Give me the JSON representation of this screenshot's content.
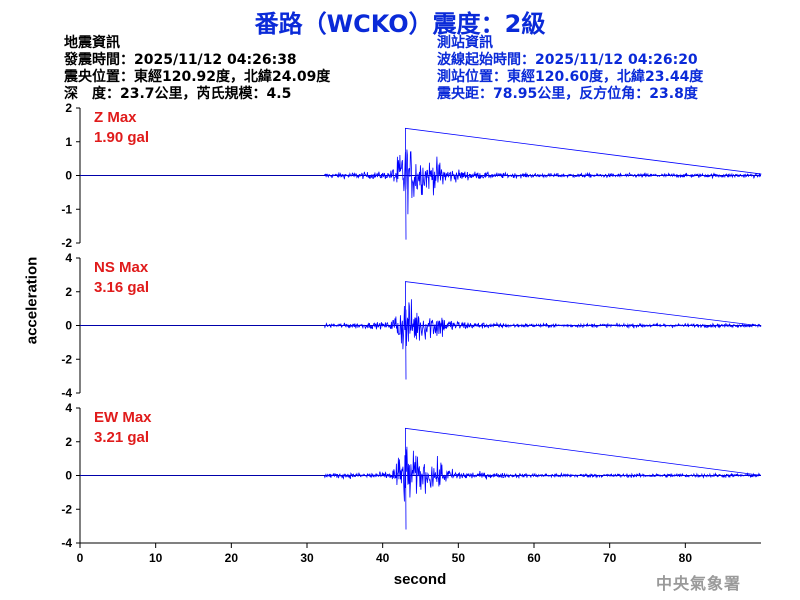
{
  "title": "番路（WCKO）震度：2級",
  "quake_info": {
    "heading": "地震資訊",
    "origin_time": "發震時間：2025/11/12 04:26:38",
    "epicenter": "震央位置：東經120.92度，北緯24.09度",
    "depth_magnitude": "深　度：23.7公里，芮氏規模：4.5"
  },
  "station_info": {
    "heading": "測站資訊",
    "wave_start": "波線起始時間：2025/11/12 04:26:20",
    "station_location": "測站位置：東經120.60度，北緯23.44度",
    "distance_azimuth": "震央距：78.95公里，反方位角：23.8度"
  },
  "watermark": "中央氣象署",
  "colors": {
    "title": "#0a2ad8",
    "trace": "#0000ff",
    "max_label": "#e01b1b",
    "zero_line": "#0000aa"
  },
  "chart_data": {
    "type": "line",
    "xlabel": "second",
    "ylabel": "acceleration",
    "xlim": [
      0,
      90
    ],
    "x_ticks": [
      0,
      10,
      20,
      30,
      40,
      50,
      60,
      70,
      80
    ],
    "x_tick_labels": [
      "0",
      "10",
      "20",
      "30",
      "40",
      "50",
      "60",
      "70",
      "80"
    ],
    "grid": false,
    "panels": [
      {
        "name": "Z",
        "max_title": "Z Max",
        "max_value": "1.90 gal",
        "ylim": [
          -2,
          2
        ],
        "y_ticks": [
          -2,
          -1,
          0,
          1,
          2
        ],
        "y_tick_labels": [
          "-2",
          "-1",
          "0",
          "1",
          "2"
        ],
        "peak_pos": 1.4,
        "peak_neg": -1.9,
        "signal_onset": 32.3,
        "peak_time": 43.0
      },
      {
        "name": "NS",
        "max_title": "NS Max",
        "max_value": "3.16 gal",
        "ylim": [
          -4,
          4
        ],
        "y_ticks": [
          -4,
          -2,
          0,
          2,
          4
        ],
        "y_tick_labels": [
          "-4",
          "-2",
          "0",
          "2",
          "4"
        ],
        "peak_pos": 2.6,
        "peak_neg": -3.2,
        "signal_onset": 32.3,
        "peak_time": 43.0
      },
      {
        "name": "EW",
        "max_title": "EW Max",
        "max_value": "3.21 gal",
        "ylim": [
          -4,
          4
        ],
        "y_ticks": [
          -4,
          -2,
          0,
          2,
          4
        ],
        "y_tick_labels": [
          "-4",
          "-2",
          "0",
          "2",
          "4"
        ],
        "peak_pos": 2.8,
        "peak_neg": -3.2,
        "signal_onset": 32.3,
        "peak_time": 43.0
      }
    ]
  }
}
